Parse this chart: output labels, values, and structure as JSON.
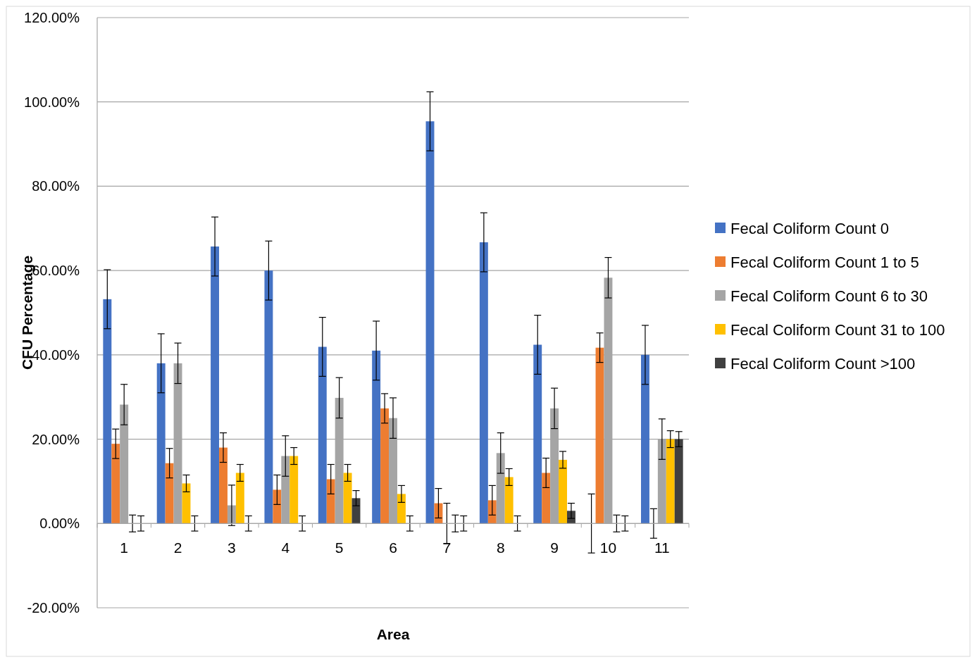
{
  "chart_data": {
    "type": "bar",
    "xlabel": "Area",
    "ylabel": "CFU Percentage",
    "categories": [
      "1",
      "2",
      "3",
      "4",
      "5",
      "6",
      "7",
      "8",
      "9",
      "10",
      "11"
    ],
    "series": [
      {
        "name": "Fecal Coliform Count 0",
        "color": "#4472c4",
        "values": [
          53.2,
          38,
          65.7,
          60,
          41.9,
          41,
          95.4,
          66.7,
          42.4,
          0,
          40
        ],
        "errors": [
          7,
          7,
          7,
          7,
          7,
          7,
          7,
          7,
          7,
          7,
          7
        ]
      },
      {
        "name": "Fecal Coliform Count 1 to 5",
        "color": "#ed7d31",
        "values": [
          18.9,
          14.3,
          18,
          8,
          10.5,
          27.3,
          4.8,
          5.5,
          12,
          41.7,
          0
        ],
        "errors": [
          3.5,
          3.5,
          3.5,
          3.5,
          3.5,
          3.5,
          3.5,
          3.5,
          3.5,
          3.5,
          3.5
        ]
      },
      {
        "name": "Fecal Coliform Count 6 to 30",
        "color": "#a5a5a5",
        "values": [
          28.2,
          38,
          4.3,
          16,
          29.8,
          25,
          0,
          16.7,
          27.3,
          58.3,
          20
        ],
        "errors": [
          4.8,
          4.8,
          4.8,
          4.8,
          4.8,
          4.8,
          4.8,
          4.8,
          4.8,
          4.8,
          4.8
        ]
      },
      {
        "name": "Fecal Coliform Count 31 to 100",
        "color": "#ffc000",
        "values": [
          0,
          9.5,
          12,
          16,
          12,
          7,
          0,
          11,
          15.1,
          0,
          20
        ],
        "errors": [
          2,
          2,
          2,
          2,
          2,
          2,
          2,
          2,
          2,
          2,
          2
        ]
      },
      {
        "name": "Fecal Coliform Count >100",
        "color": "#404040",
        "values": [
          0,
          0,
          0,
          0,
          6,
          0,
          0,
          0,
          3,
          0,
          20
        ],
        "errors": [
          1.8,
          1.8,
          1.8,
          1.8,
          1.8,
          1.8,
          1.8,
          1.8,
          1.8,
          1.8,
          1.8
        ]
      }
    ],
    "ylim": [
      -20,
      120
    ],
    "yticks": [
      {
        "value": -20,
        "label": "-20.00%"
      },
      {
        "value": 0,
        "label": "0.00%"
      },
      {
        "value": 20,
        "label": "20.00%"
      },
      {
        "value": 40,
        "label": "40.00%"
      },
      {
        "value": 60,
        "label": "60.00%"
      },
      {
        "value": 80,
        "label": "80.00%"
      },
      {
        "value": 100,
        "label": "100.00%"
      },
      {
        "value": 120,
        "label": "120.00%"
      }
    ],
    "grid": "y",
    "legend": "right"
  }
}
